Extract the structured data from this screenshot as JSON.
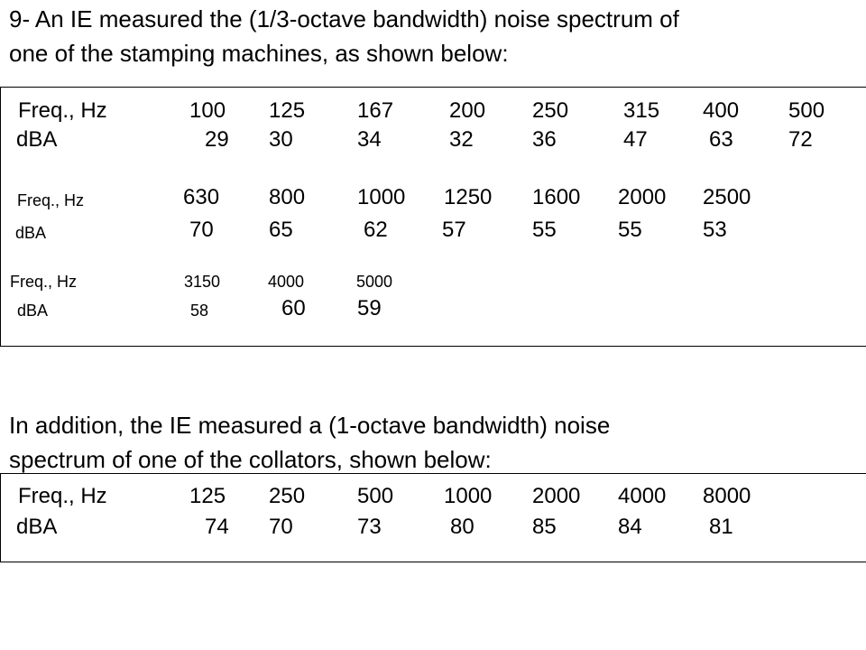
{
  "intro": {
    "line1": "9- An IE measured the (1/3-octave bandwidth) noise spectrum of",
    "line2": "one of the stamping machines, as shown below:"
  },
  "table1": {
    "rows": [
      {
        "freq_label": "Freq., Hz",
        "dba_label": "dBA",
        "freqs": [
          "100",
          "125",
          "167",
          "200",
          "250",
          "315",
          "400",
          "500"
        ],
        "dba": [
          "29",
          "30",
          "34",
          "32",
          "36",
          "47",
          "63",
          "72"
        ]
      },
      {
        "freq_label": "Freq., Hz",
        "dba_label": "dBA",
        "freqs": [
          "630",
          "800",
          "1000",
          "1250",
          "1600",
          "2000",
          "2500"
        ],
        "dba": [
          "70",
          "65",
          "62",
          "57",
          "55",
          "55",
          "53"
        ]
      },
      {
        "freq_label": "Freq., Hz",
        "dba_label": "dBA",
        "freqs": [
          "3150",
          "4000",
          "5000"
        ],
        "dba": [
          "58",
          "60",
          "59"
        ]
      }
    ]
  },
  "addition": {
    "line1": "In addition, the IE measured a (1-octave bandwidth) noise",
    "line2": "spectrum of one of the collators, shown below:"
  },
  "table2": {
    "freq_label": "Freq., Hz",
    "dba_label": "dBA",
    "freqs": [
      "125",
      "250",
      "500",
      "1000",
      "2000",
      "4000",
      "8000"
    ],
    "dba": [
      "74",
      "70",
      "73",
      "80",
      "85",
      "84",
      "81"
    ]
  }
}
